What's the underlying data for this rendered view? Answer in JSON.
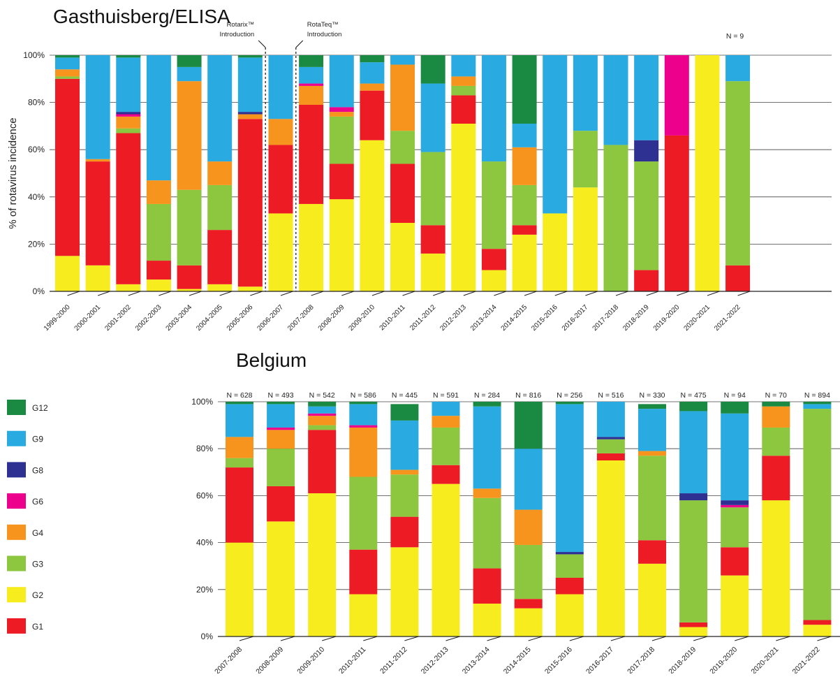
{
  "colors": {
    "G1": "#ed1c24",
    "G2": "#f7ec1e",
    "G3": "#8dc63f",
    "G4": "#f7941d",
    "G6": "#ec008c",
    "G8": "#2e3192",
    "G9": "#29abe2",
    "G12": "#1a8a42"
  },
  "legend": {
    "placement": "left",
    "items": [
      "G12",
      "G9",
      "G8",
      "G6",
      "G4",
      "G3",
      "G2",
      "G1"
    ]
  },
  "chart_data": [
    {
      "type": "bar",
      "stacked": true,
      "title": "Gasthuisberg/ELISA",
      "ylabel": "% of rotavirus incidence",
      "ylim": [
        0,
        100
      ],
      "yticks": [
        "0%",
        "20%",
        "40%",
        "60%",
        "80%",
        "100%"
      ],
      "grid": true,
      "annotations": [
        {
          "text": "Rotarix™\nIntroduction",
          "between": [
            "2005-2006",
            "2006-2007"
          ]
        },
        {
          "text": "RotaTeq™\nIntroduction",
          "between": [
            "2006-2007",
            "2007-2008"
          ]
        }
      ],
      "n_labels": {
        "2021-2022": "N = 9"
      },
      "categories": [
        "1999-2000",
        "2000-2001",
        "2001-2002",
        "2002-2003",
        "2003-2004",
        "2004-2005",
        "2005-2006",
        "2006-2007",
        "2007-2008",
        "2008-2009",
        "2009-2010",
        "2010-2011",
        "2011-2012",
        "2012-2013",
        "2013-2014",
        "2014-2015",
        "2015-2016",
        "2016-2017",
        "2017-2018",
        "2018-2019",
        "2019-2020",
        "2020-2021",
        "2021-2022"
      ],
      "series": [
        {
          "name": "G2",
          "values": [
            15,
            11,
            3,
            5,
            1,
            3,
            2,
            33,
            37,
            39,
            64,
            29,
            16,
            71,
            9,
            24,
            33,
            44,
            0,
            0,
            0,
            100,
            0
          ]
        },
        {
          "name": "G1",
          "values": [
            75,
            44,
            64,
            8,
            10,
            23,
            71,
            29,
            42,
            15,
            21,
            25,
            12,
            12,
            9,
            4,
            0,
            0,
            0,
            9,
            66,
            0,
            11
          ]
        },
        {
          "name": "G3",
          "values": [
            1,
            0,
            2,
            24,
            32,
            19,
            0,
            0,
            0,
            20,
            0,
            14,
            31,
            4,
            37,
            17,
            0,
            24,
            62,
            46,
            0,
            0,
            78
          ]
        },
        {
          "name": "G4",
          "values": [
            3,
            1,
            5,
            10,
            46,
            10,
            2,
            11,
            8,
            2,
            3,
            28,
            0,
            4,
            0,
            16,
            0,
            0,
            0,
            0,
            0,
            0,
            0
          ]
        },
        {
          "name": "G6",
          "values": [
            0,
            0,
            1,
            0,
            0,
            0,
            0,
            0,
            1,
            2,
            0,
            0,
            0,
            0,
            0,
            0,
            0,
            0,
            0,
            0,
            34,
            0,
            0
          ]
        },
        {
          "name": "G8",
          "values": [
            0,
            0,
            1,
            0,
            0,
            0,
            1,
            0,
            0,
            0,
            0,
            0,
            0,
            0,
            0,
            0,
            0,
            0,
            0,
            9,
            0,
            0,
            0
          ]
        },
        {
          "name": "G9",
          "values": [
            5,
            44,
            23,
            53,
            6,
            45,
            23,
            27,
            7,
            22,
            9,
            4,
            29,
            9,
            45,
            10,
            67,
            32,
            38,
            36,
            0,
            0,
            11
          ]
        },
        {
          "name": "G12",
          "values": [
            1,
            0,
            1,
            0,
            5,
            0,
            1,
            0,
            5,
            0,
            3,
            0,
            12,
            0,
            0,
            29,
            0,
            0,
            0,
            0,
            0,
            0,
            0
          ]
        }
      ]
    },
    {
      "type": "bar",
      "stacked": true,
      "title": "Belgium",
      "ylim": [
        0,
        100
      ],
      "yticks": [
        "0%",
        "20%",
        "40%",
        "60%",
        "80%",
        "100%"
      ],
      "grid": true,
      "categories": [
        "2007-2008",
        "2008-2009",
        "2009-2010",
        "2010-2011",
        "2011-2012",
        "2012-2013",
        "2013-2014",
        "2014-2015",
        "2015-2016",
        "2016-2017",
        "2017-2018",
        "2018-2019",
        "2019-2020",
        "2020-2021",
        "2021-2022"
      ],
      "n_labels": [
        "N = 628",
        "N = 493",
        "N = 542",
        "N = 586",
        "N = 445",
        "N = 591",
        "N = 284",
        "N = 816",
        "N = 256",
        "N = 516",
        "N = 330",
        "N = 475",
        "N = 94",
        "N = 70",
        "N = 894"
      ],
      "series": [
        {
          "name": "G2",
          "values": [
            40,
            49,
            61,
            18,
            38,
            65,
            14,
            12,
            18,
            75,
            31,
            4,
            26,
            58,
            5
          ]
        },
        {
          "name": "G1",
          "values": [
            32,
            15,
            27,
            19,
            13,
            8,
            15,
            4,
            7,
            3,
            10,
            2,
            12,
            19,
            2
          ]
        },
        {
          "name": "G3",
          "values": [
            4,
            16,
            2,
            31,
            18,
            16,
            30,
            23,
            10,
            6,
            36,
            52,
            17,
            12,
            90
          ]
        },
        {
          "name": "G4",
          "values": [
            9,
            8,
            4,
            21,
            2,
            5,
            4,
            15,
            0,
            0,
            2,
            0,
            0,
            9,
            0
          ]
        },
        {
          "name": "G6",
          "values": [
            0,
            1,
            1,
            1,
            0,
            0,
            0,
            0,
            0,
            0,
            0,
            0,
            1,
            0,
            0
          ]
        },
        {
          "name": "G8",
          "values": [
            0,
            0,
            0,
            0,
            0,
            0,
            0,
            0,
            1,
            1,
            0,
            3,
            2,
            0,
            0
          ]
        },
        {
          "name": "G9",
          "values": [
            14,
            10,
            3,
            9,
            21,
            6,
            35,
            26,
            63,
            15,
            18,
            35,
            37,
            0,
            2
          ]
        },
        {
          "name": "G12",
          "values": [
            1,
            1,
            2,
            1,
            7,
            0,
            2,
            20,
            1,
            0,
            2,
            4,
            5,
            2,
            1
          ]
        }
      ]
    }
  ]
}
